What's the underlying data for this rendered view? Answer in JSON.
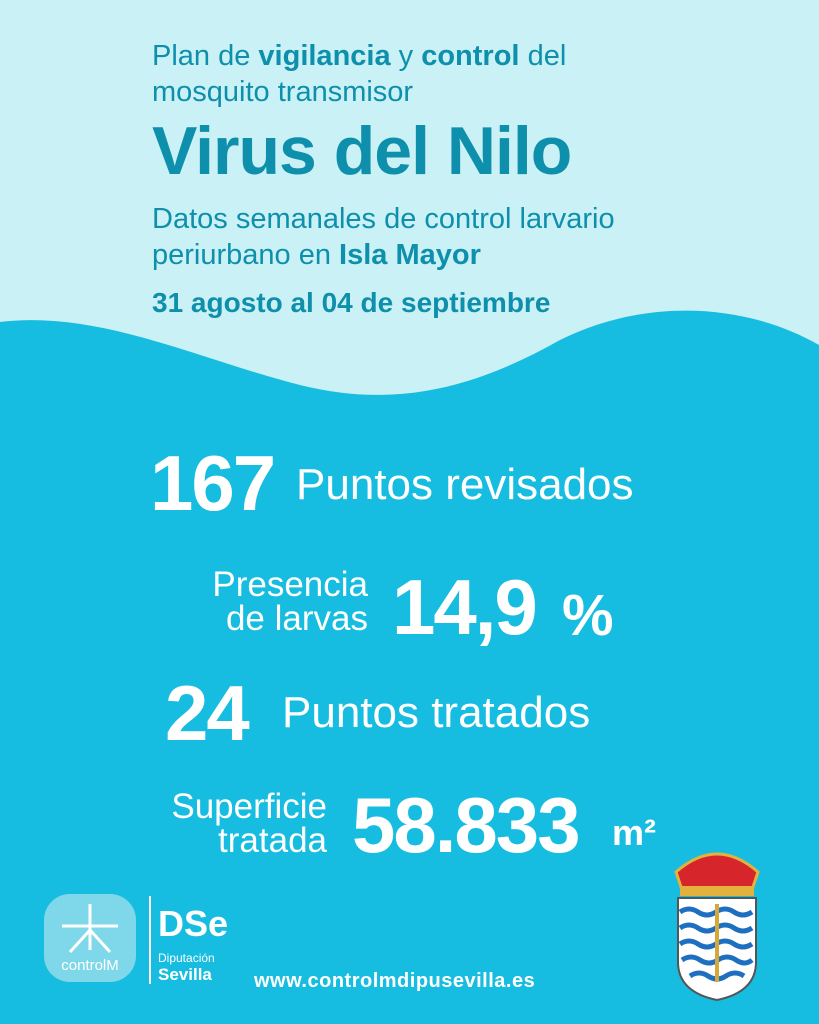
{
  "header": {
    "intro": [
      "Plan de",
      "vigilancia",
      "y",
      "control",
      "del",
      "mosquito transmisor"
    ],
    "title": "Virus del Nilo",
    "subtitle": [
      "Datos semanales de control larvario",
      "periurbano en",
      "Isla Mayor"
    ],
    "dates": "31 agosto al 04 de septiembre"
  },
  "stats": [
    {
      "value": "167",
      "label": [
        "Puntos revisados"
      ]
    },
    {
      "label": [
        "Presencia",
        "de larvas"
      ],
      "value": "14,9",
      "unit": "%"
    },
    {
      "value": "24",
      "label": [
        "Puntos tratados"
      ]
    },
    {
      "label": [
        "Superficie",
        "tratada"
      ],
      "value": "58.833",
      "unit": "m²"
    }
  ],
  "footer": {
    "logo_controlm": "controlM",
    "logo_dipu": [
      "Diputación",
      "Sevilla"
    ],
    "url": "www.controlmdipusevilla.es"
  }
}
